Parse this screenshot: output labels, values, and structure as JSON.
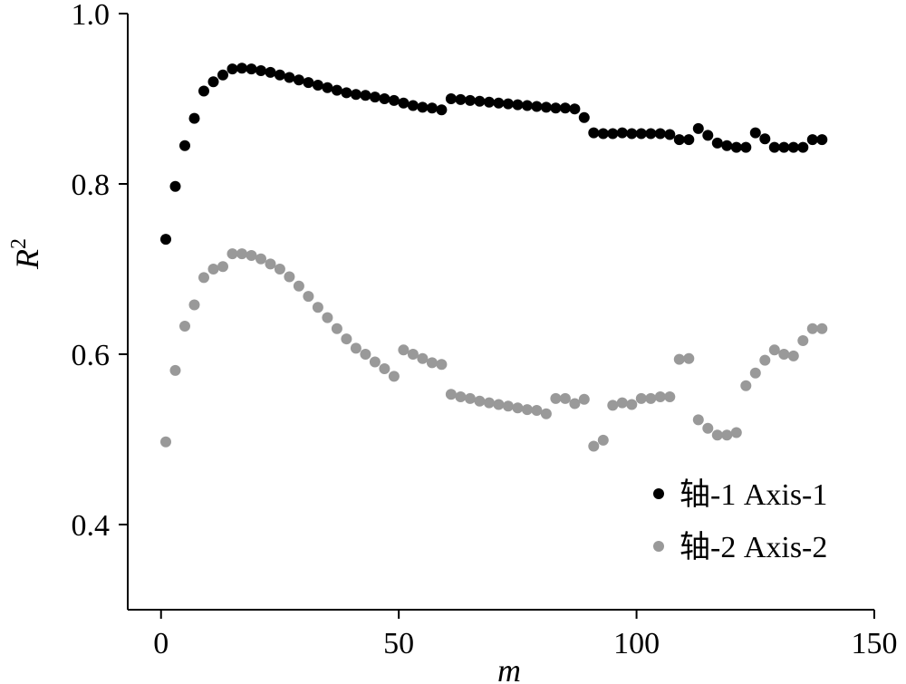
{
  "chart_data": {
    "type": "scatter",
    "title": "",
    "xlabel": "m",
    "ylabel": "R",
    "ylabel_superscript": "2",
    "xlim": [
      -7,
      150
    ],
    "ylim": [
      0.3,
      1.0
    ],
    "xticks": [
      0,
      50,
      100,
      150
    ],
    "xtick_labels": [
      "0",
      "50",
      "100",
      "150"
    ],
    "yticks": [
      0.4,
      0.6,
      0.8,
      1.0
    ],
    "ytick_labels": [
      "0.4",
      "0.6",
      "0.8",
      "1.0"
    ],
    "grid": false,
    "legend_position": "bottom-right",
    "series": [
      {
        "name": "轴-1 Axis-1",
        "color": "#000000",
        "x": [
          1,
          3,
          5,
          7,
          9,
          11,
          13,
          15,
          17,
          19,
          21,
          23,
          25,
          27,
          29,
          31,
          33,
          35,
          37,
          39,
          41,
          43,
          45,
          47,
          49,
          51,
          53,
          55,
          57,
          59,
          61,
          63,
          65,
          67,
          69,
          71,
          73,
          75,
          77,
          79,
          81,
          83,
          85,
          87,
          89,
          91,
          93,
          95,
          97,
          99,
          101,
          103,
          105,
          107,
          109,
          111,
          113,
          115,
          117,
          119,
          121,
          123,
          125,
          127,
          129,
          131,
          133,
          135,
          137,
          139
        ],
        "y": [
          0.735,
          0.797,
          0.845,
          0.877,
          0.909,
          0.92,
          0.928,
          0.935,
          0.936,
          0.935,
          0.933,
          0.931,
          0.928,
          0.925,
          0.922,
          0.919,
          0.916,
          0.913,
          0.91,
          0.907,
          0.905,
          0.904,
          0.902,
          0.9,
          0.898,
          0.895,
          0.892,
          0.89,
          0.889,
          0.887,
          0.9,
          0.899,
          0.898,
          0.897,
          0.896,
          0.895,
          0.894,
          0.893,
          0.892,
          0.891,
          0.89,
          0.889,
          0.889,
          0.888,
          0.878,
          0.86,
          0.859,
          0.859,
          0.86,
          0.859,
          0.859,
          0.859,
          0.859,
          0.858,
          0.852,
          0.852,
          0.865,
          0.857,
          0.848,
          0.845,
          0.843,
          0.843,
          0.86,
          0.853,
          0.843,
          0.843,
          0.843,
          0.843,
          0.852,
          0.852
        ]
      },
      {
        "name": "轴-2 Axis-2",
        "color": "#999999",
        "x": [
          1,
          3,
          5,
          7,
          9,
          11,
          13,
          15,
          17,
          19,
          21,
          23,
          25,
          27,
          29,
          31,
          33,
          35,
          37,
          39,
          41,
          43,
          45,
          47,
          49,
          51,
          53,
          55,
          57,
          59,
          61,
          63,
          65,
          67,
          69,
          71,
          73,
          75,
          77,
          79,
          81,
          83,
          85,
          87,
          89,
          91,
          93,
          95,
          97,
          99,
          101,
          103,
          105,
          107,
          109,
          111,
          113,
          115,
          117,
          119,
          121,
          123,
          125,
          127,
          129,
          131,
          133,
          135,
          137,
          139
        ],
        "y": [
          0.497,
          0.581,
          0.633,
          0.658,
          0.69,
          0.7,
          0.703,
          0.718,
          0.718,
          0.716,
          0.712,
          0.706,
          0.7,
          0.691,
          0.68,
          0.668,
          0.655,
          0.643,
          0.63,
          0.618,
          0.607,
          0.6,
          0.591,
          0.583,
          0.574,
          0.605,
          0.6,
          0.595,
          0.59,
          0.588,
          0.553,
          0.55,
          0.548,
          0.545,
          0.543,
          0.541,
          0.539,
          0.537,
          0.535,
          0.534,
          0.53,
          0.548,
          0.548,
          0.542,
          0.547,
          0.492,
          0.499,
          0.54,
          0.543,
          0.541,
          0.548,
          0.548,
          0.55,
          0.55,
          0.594,
          0.595,
          0.523,
          0.513,
          0.505,
          0.505,
          0.508,
          0.563,
          0.578,
          0.593,
          0.605,
          0.6,
          0.598,
          0.616,
          0.63,
          0.63
        ]
      }
    ]
  }
}
